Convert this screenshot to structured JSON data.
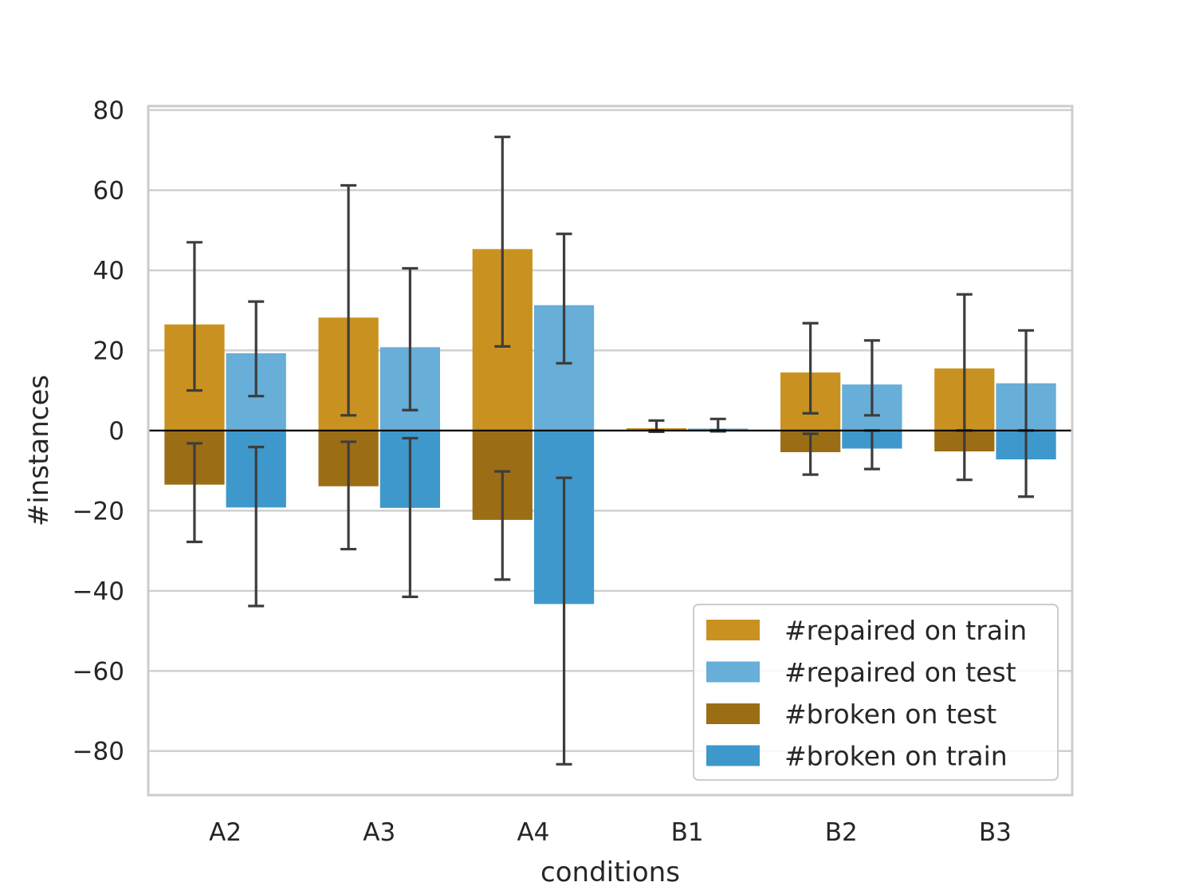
{
  "chart_data": {
    "type": "bar",
    "xlabel": "conditions",
    "ylabel": "#instances",
    "ylim": [
      -91,
      81
    ],
    "yticks": [
      80,
      60,
      40,
      20,
      0,
      -20,
      -40,
      -60,
      -80
    ],
    "ytick_labels": [
      "80",
      "60",
      "40",
      "20",
      "0",
      "−20",
      "−40",
      "−60",
      "−80"
    ],
    "grid": true,
    "legend_position": "lower-right",
    "categories": [
      "A2",
      "A3",
      "A4",
      "B1",
      "B2",
      "B3"
    ],
    "series": [
      {
        "name": "#repaired on train",
        "color": "#c99220",
        "slot": 0,
        "values": [
          26.5,
          28.2,
          45.3,
          0.6,
          14.5,
          15.5
        ],
        "err_low": [
          10.0,
          3.8,
          21.0,
          -0.3,
          4.3,
          0.0
        ],
        "err_high": [
          47.0,
          61.2,
          73.3,
          2.5,
          26.8,
          34.0
        ]
      },
      {
        "name": "#repaired on test",
        "color": "#67aed8",
        "slot": 1,
        "values": [
          19.3,
          20.8,
          31.3,
          0.5,
          11.5,
          11.8
        ],
        "err_low": [
          8.6,
          5.1,
          16.8,
          0.0,
          3.8,
          0.0
        ],
        "err_high": [
          32.2,
          40.5,
          49.1,
          2.9,
          22.5,
          25.0
        ]
      },
      {
        "name": "#broken on test",
        "color": "#9b6e16",
        "slot": 0,
        "values": [
          -13.5,
          -13.9,
          -22.3,
          -0.1,
          -5.4,
          -5.2
        ],
        "err_low": [
          -27.8,
          -29.6,
          -37.2,
          -0.2,
          -11.0,
          -12.3
        ],
        "err_high": [
          -3.2,
          -2.8,
          -10.2,
          0.0,
          -0.8,
          0.0
        ]
      },
      {
        "name": "#broken on train",
        "color": "#3f98cb",
        "slot": 1,
        "values": [
          -19.2,
          -19.3,
          -43.3,
          -0.1,
          -4.5,
          -7.2
        ],
        "err_low": [
          -43.8,
          -41.5,
          -83.3,
          -0.2,
          -9.6,
          -16.5
        ],
        "err_high": [
          -4.1,
          -1.9,
          -11.8,
          0.0,
          0.0,
          0.0
        ]
      }
    ]
  }
}
